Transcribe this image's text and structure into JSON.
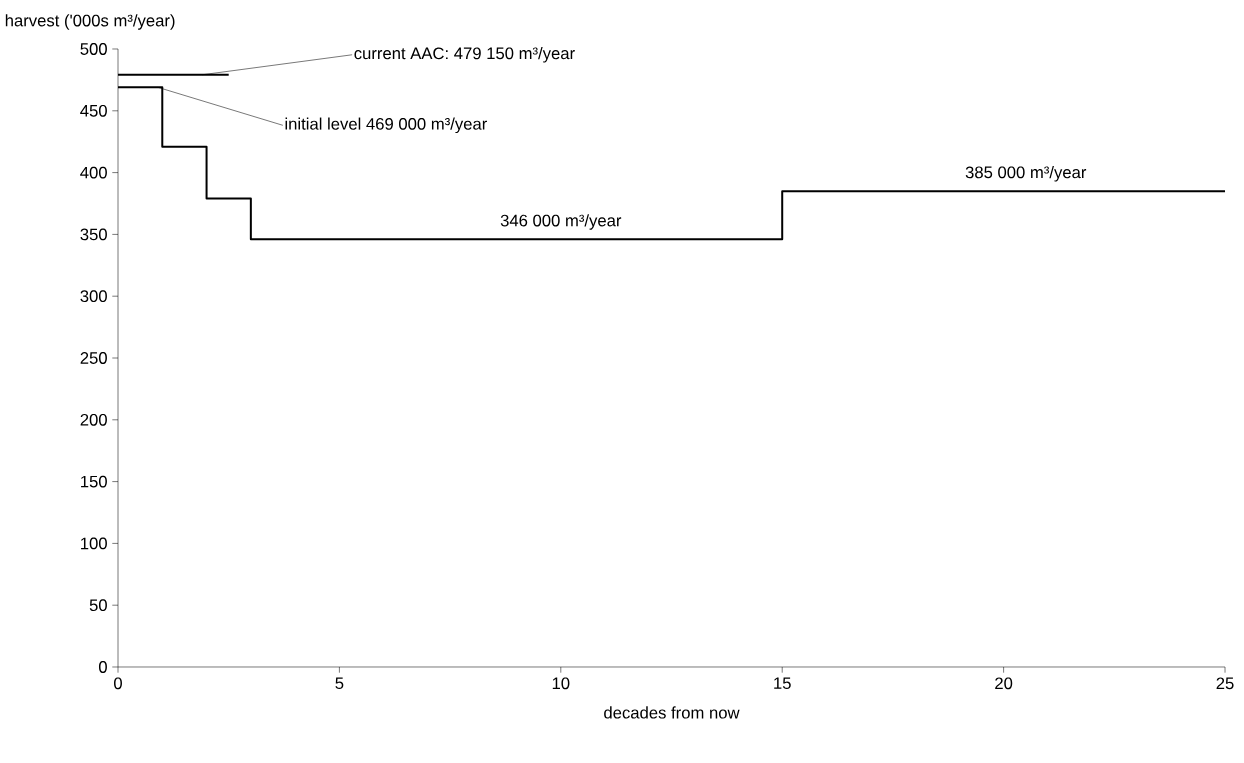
{
  "chart_data": {
    "type": "step",
    "xlabel": "decades from now",
    "ylabel": "harvest ('000s m³/year)",
    "series": [
      {
        "color": "#000000",
        "x": [
          0,
          1,
          2,
          3,
          15,
          25
        ],
        "values": [
          469,
          421,
          379,
          346,
          385,
          385
        ]
      },
      {
        "type": "line",
        "color": "#000000",
        "x": [
          0,
          2.5
        ],
        "values": [
          479.15,
          479.15
        ]
      }
    ],
    "annotations": [
      {
        "text": "current AAC: 479 150 m³/year",
        "x": 1.9,
        "y": 479.15
      },
      {
        "text": "initial level 469 000 m³/year",
        "x": 0.9,
        "y": 469
      },
      {
        "text": "346 000 m³/year",
        "x": 10,
        "y": 346
      },
      {
        "text": "385 000 m³/year",
        "x": 20.5,
        "y": 385
      }
    ],
    "xlim": [
      0,
      25
    ],
    "ylim": [
      0,
      500
    ],
    "xticks": [
      0,
      5,
      10,
      15,
      20,
      25
    ],
    "yticks": [
      0,
      50,
      100,
      150,
      200,
      250,
      300,
      350,
      400,
      450,
      500
    ],
    "grid": false,
    "marker": "none",
    "line_style": "solid"
  }
}
